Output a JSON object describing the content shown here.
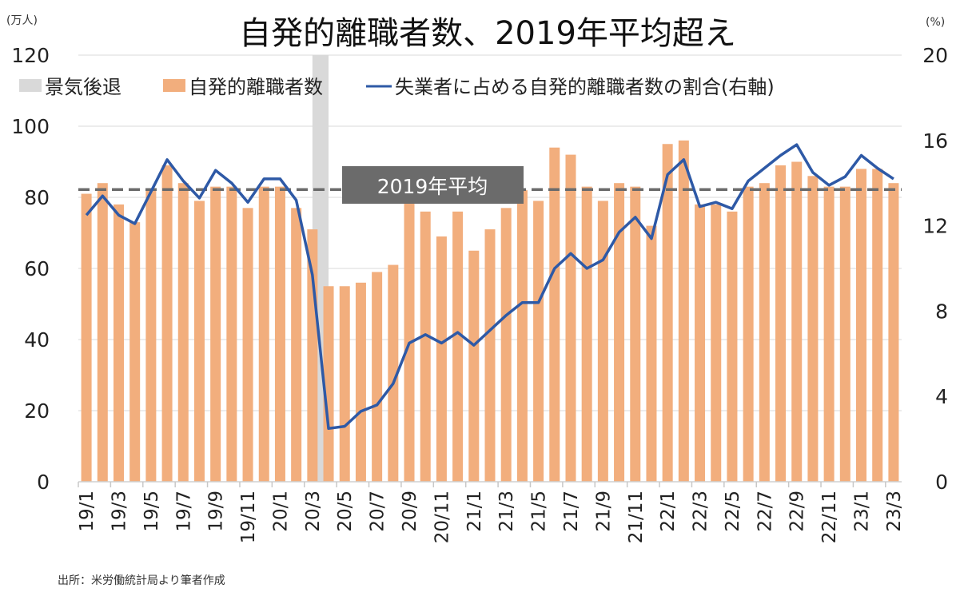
{
  "chart_data": {
    "type": "bar+line",
    "title": "自発的離職者数、2019年平均超え",
    "left_unit": "(万人)",
    "right_unit": "(%)",
    "ylim_left": [
      0,
      120
    ],
    "yticks_left": [
      0,
      20,
      40,
      60,
      80,
      100,
      120
    ],
    "ylim_right": [
      0,
      20
    ],
    "yticks_right": [
      0,
      4,
      8,
      12,
      16,
      20
    ],
    "grid": true,
    "legend_placement": "top",
    "legend": {
      "recession": "景気後退",
      "bars": "自発的離職者数",
      "line": "失業者に占める自発的離職者数の割合(右軸)"
    },
    "categories": [
      "19/1",
      "19/2",
      "19/3",
      "19/4",
      "19/5",
      "19/6",
      "19/7",
      "19/8",
      "19/9",
      "19/10",
      "19/11",
      "19/12",
      "20/1",
      "20/2",
      "20/3",
      "20/4",
      "20/5",
      "20/6",
      "20/7",
      "20/8",
      "20/9",
      "20/10",
      "20/11",
      "20/12",
      "21/1",
      "21/2",
      "21/3",
      "21/4",
      "21/5",
      "21/6",
      "21/7",
      "21/8",
      "21/9",
      "21/10",
      "21/11",
      "21/12",
      "22/1",
      "22/2",
      "22/3",
      "22/4",
      "22/5",
      "22/6",
      "22/7",
      "22/8",
      "22/9",
      "22/10",
      "22/11",
      "22/12",
      "23/1",
      "23/2",
      "23/3"
    ],
    "xtick_labels": [
      "19/1",
      "19/3",
      "19/5",
      "19/7",
      "19/9",
      "19/11",
      "20/1",
      "20/3",
      "20/5",
      "20/7",
      "20/9",
      "20/11",
      "21/1",
      "21/3",
      "21/5",
      "21/7",
      "21/9",
      "21/11",
      "22/1",
      "22/3",
      "22/5",
      "22/7",
      "22/9",
      "22/11",
      "23/1",
      "23/3"
    ],
    "series": [
      {
        "name": "自発的離職者数",
        "axis": "left",
        "type": "bar",
        "values": [
          81,
          84,
          78,
          73,
          82,
          89,
          84,
          79,
          83,
          83,
          77,
          83,
          83,
          77,
          71,
          55,
          55,
          56,
          59,
          61,
          79,
          76,
          69,
          76,
          65,
          71,
          77,
          82,
          79,
          94,
          92,
          83,
          79,
          84,
          83,
          72,
          95,
          96,
          78,
          78,
          76,
          83,
          84,
          89,
          90,
          86,
          83,
          83,
          88,
          88,
          84
        ]
      },
      {
        "name": "失業者に占める自発的離職者数の割合(右軸)",
        "axis": "right",
        "type": "line",
        "values": [
          12.5,
          13.4,
          12.5,
          12.1,
          13.6,
          15.1,
          14.1,
          13.3,
          14.6,
          14.0,
          13.1,
          14.2,
          14.2,
          13.2,
          9.7,
          2.5,
          2.6,
          3.3,
          3.6,
          4.6,
          6.5,
          6.9,
          6.5,
          7.0,
          6.4,
          7.1,
          7.8,
          8.4,
          8.4,
          10.0,
          10.7,
          10.0,
          10.4,
          11.7,
          12.4,
          11.4,
          14.4,
          15.1,
          12.9,
          13.1,
          12.8,
          14.1,
          14.7,
          15.3,
          15.8,
          14.5,
          13.9,
          14.3,
          15.3,
          14.7,
          14.2
        ]
      }
    ],
    "reference_line": {
      "label": "2019年平均",
      "value": 82.2,
      "axis": "left"
    },
    "recession": {
      "start": "20/3",
      "end": "20/4"
    },
    "colors": {
      "bars": "#F2AE7D",
      "line": "#2E59A6",
      "recession": "#D9D9D9",
      "reference": "#6B6B6B",
      "grid": "#E6E6E6"
    },
    "source": "出所：米労働統計局より筆者作成"
  }
}
